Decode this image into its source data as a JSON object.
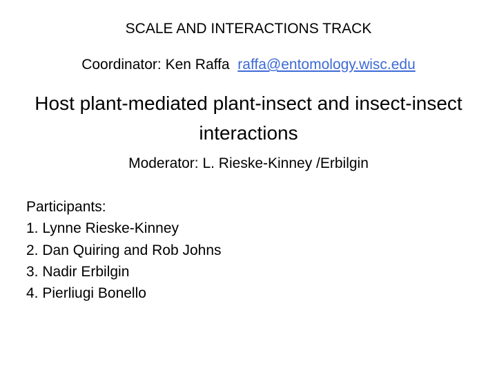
{
  "track_title": "SCALE AND INTERACTIONS TRACK",
  "coordinator": {
    "label": "Coordinator: Ken Raffa",
    "email": "raffa@entomology.wisc.edu"
  },
  "session_title": "Host plant-mediated plant-insect and insect-insect interactions",
  "moderator_line": "Moderator: L. Rieske-Kinney /Erbilgin",
  "participants": {
    "heading": "Participants:",
    "items": [
      "1. Lynne Rieske-Kinney",
      "2. Dan Quiring and Rob Johns",
      "3. Nadir Erbilgin",
      "4. Pierliugi Bonello"
    ]
  },
  "colors": {
    "background": "#ffffff",
    "text": "#000000",
    "link": "#3d6ad6"
  },
  "typography": {
    "body_fontsize": 21,
    "title_fontsize": 28,
    "font_family": "Arial"
  }
}
